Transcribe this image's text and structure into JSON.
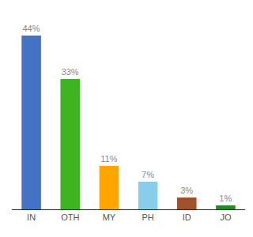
{
  "chart_data": {
    "type": "bar",
    "categories": [
      "IN",
      "OTH",
      "MY",
      "PH",
      "ID",
      "JO"
    ],
    "values": [
      44,
      33,
      11,
      7,
      3,
      1
    ],
    "value_labels": [
      "44%",
      "33%",
      "11%",
      "7%",
      "3%",
      "1%"
    ],
    "colors": [
      "#4472C4",
      "#3CB521",
      "#FFA500",
      "#87CEEB",
      "#A0522D",
      "#228B22"
    ],
    "ylim": [
      0,
      48
    ],
    "grid": false,
    "data_labels": true,
    "tick_labels": "x"
  }
}
